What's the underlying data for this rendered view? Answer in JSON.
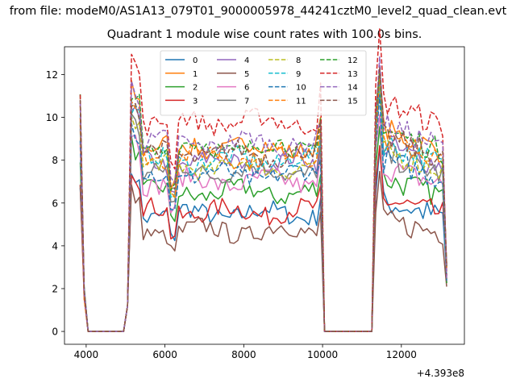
{
  "figure": {
    "suptitle": "from file: modeM0/AS1A13_079T01_9000005978_44241cztM0_level2_quad_clean.evt",
    "title": "Quadrant 1 module wise count rates with 100.0s bins."
  },
  "chart_data": {
    "type": "line",
    "title": "Quadrant 1 module wise count rates with 100.0s bins.",
    "xlabel": "",
    "ylabel": "",
    "x_offset_label": "+4.393e8",
    "xlim": [
      3450,
      13600
    ],
    "ylim": [
      -0.6,
      13.3
    ],
    "xticks": [
      4000,
      6000,
      8000,
      10000,
      12000
    ],
    "yticks": [
      0,
      2,
      4,
      6,
      8,
      10,
      12
    ],
    "grid": false,
    "legend": {
      "placement": "top-center",
      "ncol": 4
    },
    "segments": [
      {
        "start": 3850,
        "end": 10050
      },
      {
        "start": 11250,
        "end": 13150
      }
    ],
    "series": [
      {
        "name": "0",
        "color": "#1f77b4",
        "dash": "solid",
        "level": 5.5
      },
      {
        "name": "1",
        "color": "#ff7f0e",
        "dash": "solid",
        "level": 8.6
      },
      {
        "name": "2",
        "color": "#2ca02c",
        "dash": "solid",
        "level": 6.5
      },
      {
        "name": "3",
        "color": "#d62728",
        "dash": "solid",
        "level": 5.6
      },
      {
        "name": "4",
        "color": "#9467bd",
        "dash": "solid",
        "level": 7.9
      },
      {
        "name": "5",
        "color": "#8c564b",
        "dash": "solid",
        "level": 4.7
      },
      {
        "name": "6",
        "color": "#e377c2",
        "dash": "solid",
        "level": 7.0
      },
      {
        "name": "7",
        "color": "#7f7f7f",
        "dash": "solid",
        "level": 7.5
      },
      {
        "name": "8",
        "color": "#bcbd22",
        "dash": "dashed",
        "level": 7.7
      },
      {
        "name": "9",
        "color": "#17becf",
        "dash": "dashed",
        "level": 8.0
      },
      {
        "name": "10",
        "color": "#1f77b4",
        "dash": "dashed",
        "level": 7.3
      },
      {
        "name": "11",
        "color": "#ff7f0e",
        "dash": "dashed",
        "level": 8.2
      },
      {
        "name": "12",
        "color": "#2ca02c",
        "dash": "dashed",
        "level": 8.6
      },
      {
        "name": "13",
        "color": "#d62728",
        "dash": "dashed",
        "level": 9.8
      },
      {
        "name": "14",
        "color": "#9467bd",
        "dash": "dashed",
        "level": 8.8
      },
      {
        "name": "15",
        "color": "#8c564b",
        "dash": "dashed",
        "level": 8.3
      }
    ]
  }
}
